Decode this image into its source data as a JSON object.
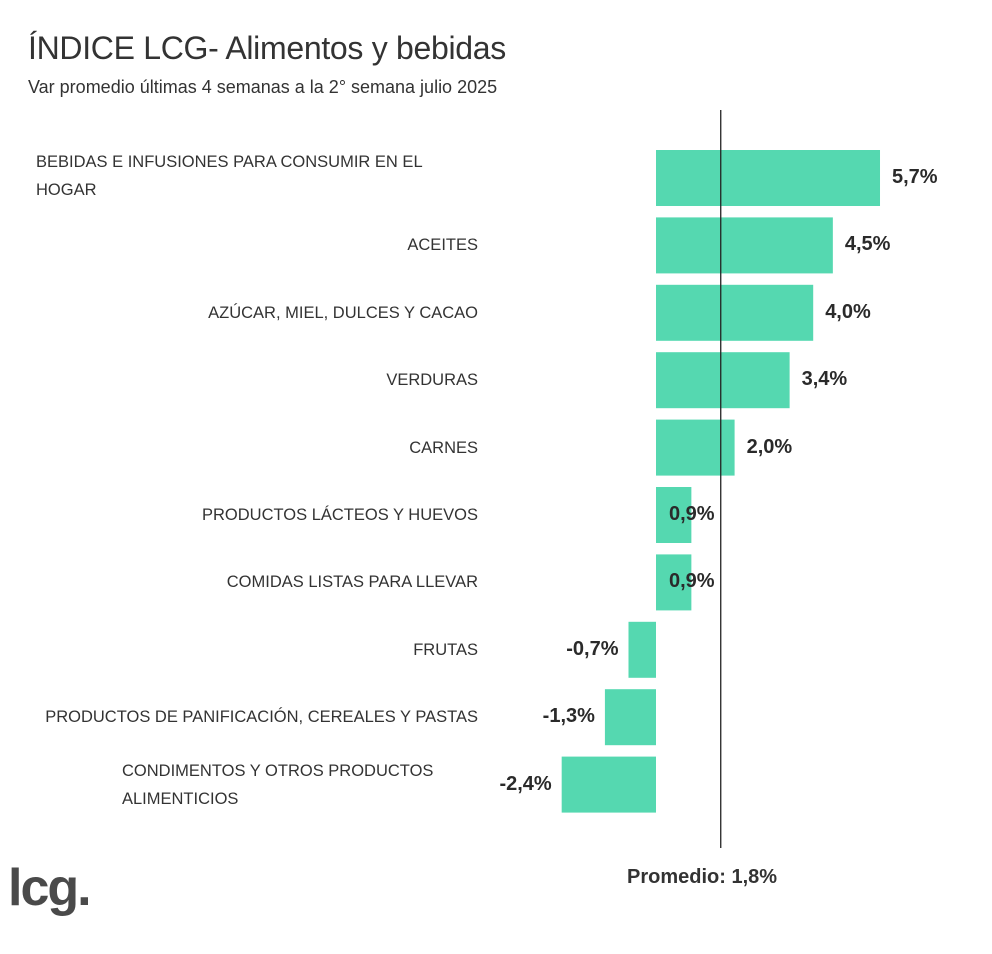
{
  "chart_data": {
    "type": "bar",
    "orientation": "horizontal",
    "title": "ÍNDICE LCG- Alimentos y bebidas",
    "subtitle": "Var promedio últimas 4 semanas a la 2° semana julio 2025",
    "categories": [
      "BEBIDAS E INFUSIONES PARA CONSUMIR EN EL HOGAR",
      "ACEITES",
      "AZÚCAR, MIEL, DULCES Y CACAO",
      "VERDURAS",
      "CARNES",
      "PRODUCTOS LÁCTEOS Y HUEVOS",
      "COMIDAS LISTAS PARA LLEVAR",
      "FRUTAS",
      "PRODUCTOS DE PANIFICACIÓN, CEREALES Y PASTAS",
      "CONDIMENTOS Y OTROS PRODUCTOS ALIMENTICIOS"
    ],
    "values": [
      5.7,
      4.5,
      4.0,
      3.4,
      2.0,
      0.9,
      0.9,
      -0.7,
      -1.3,
      -2.4
    ],
    "data_labels": [
      "5,7%",
      "4,5%",
      "4,0%",
      "3,4%",
      "2,0%",
      "0,9%",
      "0,9%",
      "-0,7%",
      "-1,3%",
      "-2,4%"
    ],
    "reference_line": {
      "value": 1.8,
      "label": "Promedio: 1,8%"
    },
    "bar_color": "#55d8b0",
    "grid": false,
    "legend": "none"
  },
  "logo": "lcg."
}
